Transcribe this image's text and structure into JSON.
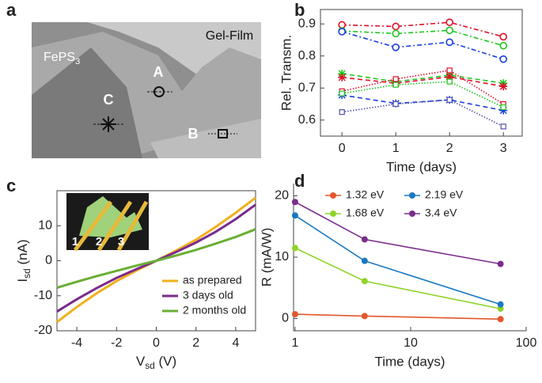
{
  "chart_data": [
    {
      "type": "image",
      "panel_label": "a",
      "labels": [
        {
          "text": "Gel-Film"
        },
        {
          "text": "FePS",
          "sub": "3"
        },
        {
          "text": "A"
        },
        {
          "text": "B"
        },
        {
          "text": "C"
        }
      ]
    },
    {
      "type": "line",
      "panel_label": "b",
      "xlabel": "Time  (days)",
      "ylabel": "Rel. Transm.",
      "x": [
        0,
        1,
        2,
        3
      ],
      "xlim": [
        -0.4,
        3.35
      ],
      "xticks": [
        0,
        1,
        2,
        3
      ],
      "ylim": [
        0.55,
        0.945
      ],
      "yticks": [
        0.6,
        0.7,
        0.8,
        0.9
      ],
      "frame": true,
      "series": [
        {
          "color": "#e0102a",
          "marker": "circle",
          "dash": "dashdot",
          "values": [
            0.897,
            0.892,
            0.905,
            0.86
          ]
        },
        {
          "color": "#1fc81f",
          "marker": "circle",
          "dash": "dashdot",
          "values": [
            0.878,
            0.87,
            0.88,
            0.832
          ]
        },
        {
          "color": "#1a3fe0",
          "marker": "circle",
          "dash": "dashdot",
          "values": [
            0.876,
            0.827,
            0.843,
            0.79
          ]
        },
        {
          "color": "#1fc81f",
          "marker": "star",
          "dash": "dashed",
          "values": [
            0.745,
            0.72,
            0.74,
            0.715
          ]
        },
        {
          "color": "#e0102a",
          "marker": "star",
          "dash": "dashed",
          "values": [
            0.733,
            0.715,
            0.735,
            0.705
          ]
        },
        {
          "color": "#1a3fe0",
          "marker": "star",
          "dash": "dashed",
          "values": [
            0.678,
            0.652,
            0.663,
            0.63
          ]
        },
        {
          "color": "#e0102a",
          "marker": "square",
          "dash": "dotted",
          "values": [
            0.69,
            0.728,
            0.755,
            0.65
          ]
        },
        {
          "color": "#1fc81f",
          "marker": "square",
          "dash": "dotted",
          "values": [
            0.683,
            0.71,
            0.72,
            0.64
          ]
        },
        {
          "color": "#5050a8",
          "marker": "square",
          "dash": "dotted",
          "values": [
            0.625,
            0.65,
            0.663,
            0.58
          ]
        }
      ]
    },
    {
      "type": "line",
      "panel_label": "c",
      "xlabel": {
        "text": "V",
        "sub": "sd",
        "unit": " (V)"
      },
      "ylabel": {
        "text": "I",
        "sub": "sd",
        "unit": " (nA)"
      },
      "x": [
        -5,
        -4,
        -3,
        -2,
        -1,
        0,
        1,
        2,
        3,
        4,
        5
      ],
      "xlim": [
        -5,
        5
      ],
      "xticks": [
        -4,
        -2,
        0,
        2,
        4
      ],
      "ylim": [
        -20,
        20
      ],
      "yticks": [
        -20,
        -10,
        0,
        10
      ],
      "frame": true,
      "legend": "lower right",
      "inset_labels": [
        "1",
        "2",
        "3"
      ],
      "series": [
        {
          "name": "as prepared",
          "color": "#f2b01e",
          "values": [
            -17.5,
            -13.2,
            -9.3,
            -5.8,
            -2.8,
            0,
            2.9,
            6,
            9.7,
            13.7,
            18
          ]
        },
        {
          "name": "3 days old",
          "color": "#7a2a8c",
          "values": [
            -14.5,
            -11,
            -7.8,
            -4.9,
            -2.4,
            0,
            2.5,
            5.2,
            8.3,
            11.9,
            16
          ]
        },
        {
          "name": "2 months old",
          "color": "#6aae34",
          "values": [
            -7.7,
            -6,
            -4.4,
            -2.9,
            -1.4,
            0,
            1.5,
            3.1,
            4.9,
            6.8,
            9
          ]
        }
      ]
    },
    {
      "type": "line",
      "panel_label": "d",
      "xlabel": "Time  (days)",
      "ylabel": "R (mA/W)",
      "xscale": "log",
      "x": [
        1,
        4,
        60
      ],
      "xlim": [
        0.97,
        100
      ],
      "xticks": [
        1,
        10,
        100
      ],
      "ylim": [
        -2,
        22
      ],
      "yticks": [
        0,
        10,
        20
      ],
      "frame": false,
      "legend": "upper right",
      "series": [
        {
          "name": "1.32 eV",
          "color": "#e3572b",
          "marker": "dot",
          "values": [
            0.7,
            0.4,
            -0.1
          ]
        },
        {
          "name": "1.68 eV",
          "color": "#8fd42a",
          "marker": "dot",
          "values": [
            11.5,
            6.1,
            1.6
          ]
        },
        {
          "name": "2.19 eV",
          "color": "#1a78c2",
          "marker": "dot",
          "values": [
            16.8,
            9.4,
            2.3
          ]
        },
        {
          "name": "3.4 eV",
          "color": "#7b2d8e",
          "marker": "dot",
          "values": [
            19,
            12.9,
            8.9
          ]
        }
      ]
    }
  ]
}
